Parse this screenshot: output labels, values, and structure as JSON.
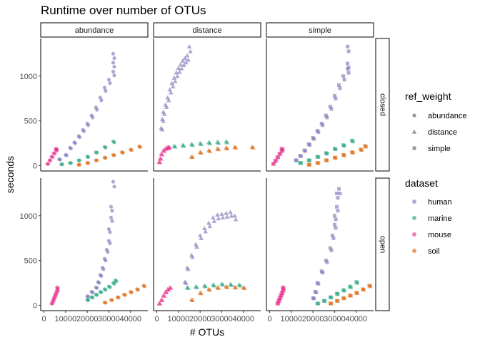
{
  "chart_data": {
    "type": "scatter",
    "title": "Runtime over number of OTUs",
    "xlabel": "# OTUs",
    "ylabel": "seconds",
    "x_ticks": [
      0,
      10000,
      20000,
      30000,
      40000
    ],
    "y_ticks": [
      0,
      500,
      1000
    ],
    "xlim": [
      -1500,
      48000
    ],
    "ylim": [
      -60,
      1420
    ],
    "grid": false,
    "legend_placement": "right",
    "facet_columns": [
      "abundance",
      "distance",
      "simple"
    ],
    "facet_rows": [
      "closed",
      "open"
    ],
    "legend_shape": {
      "title": "ref_weight",
      "items": [
        {
          "label": "abundance",
          "shape": "circle"
        },
        {
          "label": "distance",
          "shape": "triangle"
        },
        {
          "label": "simple",
          "shape": "square"
        }
      ]
    },
    "legend_color": {
      "title": "dataset",
      "items": [
        {
          "label": "human",
          "color": "#7570B3"
        },
        {
          "label": "marine",
          "color": "#1B9E77"
        },
        {
          "label": "mouse",
          "color": "#E7298A"
        },
        {
          "label": "soil",
          "color": "#D95F02"
        }
      ]
    },
    "panels": [
      {
        "row": "closed",
        "col": "abundance",
        "shape": "circle",
        "series": [
          {
            "dataset": "human",
            "x": [
              7000,
              10000,
              12000,
              14000,
              16000,
              18000,
              20000,
              22000,
              24000,
              26000,
              28000,
              30000,
              32000,
              32000,
              32000
            ],
            "y": [
              70,
              120,
              200,
              260,
              330,
              400,
              470,
              560,
              650,
              760,
              870,
              960,
              1050,
              1150,
              1250
            ]
          },
          {
            "dataset": "marine",
            "x": [
              8000,
              12000,
              16000,
              20000,
              24000,
              28000,
              32000
            ],
            "y": [
              15,
              30,
              60,
              100,
              150,
              210,
              270
            ]
          },
          {
            "dataset": "mouse",
            "x": [
              1500,
              2500,
              3500,
              4500,
              5500,
              5500
            ],
            "y": [
              20,
              60,
              100,
              140,
              175,
              190
            ]
          },
          {
            "dataset": "soil",
            "x": [
              16000,
              20000,
              24000,
              28000,
              32000,
              36000,
              40000,
              44000
            ],
            "y": [
              10,
              30,
              60,
              90,
              120,
              150,
              180,
              215
            ]
          }
        ]
      },
      {
        "row": "closed",
        "col": "distance",
        "shape": "triangle",
        "series": [
          {
            "dataset": "human",
            "x": [
              2000,
              2500,
              3000,
              4000,
              5000,
              6000,
              7000,
              8000,
              9000,
              10000,
              11000,
              12000,
              13000,
              14000,
              15000
            ],
            "y": [
              420,
              520,
              600,
              680,
              760,
              850,
              920,
              980,
              1040,
              1090,
              1130,
              1170,
              1200,
              1230,
              1330
            ]
          },
          {
            "dataset": "marine",
            "x": [
              8000,
              12000,
              16000,
              20000,
              24000,
              28000,
              32000
            ],
            "y": [
              220,
              230,
              240,
              250,
              260,
              265,
              270
            ]
          },
          {
            "dataset": "mouse",
            "x": [
              1000,
              1500,
              2000,
              3000,
              4000,
              5000,
              5500
            ],
            "y": [
              40,
              80,
              130,
              170,
              195,
              205,
              210
            ]
          },
          {
            "dataset": "soil",
            "x": [
              16000,
              20000,
              24000,
              28000,
              32000,
              36000,
              44000
            ],
            "y": [
              100,
              150,
              170,
              190,
              200,
              210,
              210
            ]
          }
        ]
      },
      {
        "row": "closed",
        "col": "simple",
        "shape": "square",
        "series": [
          {
            "dataset": "human",
            "x": [
              12000,
              14000,
              16000,
              18000,
              20000,
              22000,
              24000,
              26000,
              28000,
              30000,
              32000,
              34000,
              36000,
              36000,
              36000
            ],
            "y": [
              60,
              110,
              170,
              240,
              310,
              390,
              470,
              560,
              660,
              780,
              900,
              1000,
              1080,
              1140,
              1330
            ]
          },
          {
            "dataset": "marine",
            "x": [
              14000,
              18000,
              22000,
              26000,
              30000,
              34000,
              38000
            ],
            "y": [
              30,
              60,
              100,
              140,
              190,
              230,
              280
            ]
          },
          {
            "dataset": "mouse",
            "x": [
              1500,
              2500,
              3500,
              4500,
              5500,
              5500
            ],
            "y": [
              20,
              55,
              95,
              135,
              170,
              190
            ]
          },
          {
            "dataset": "soil",
            "x": [
              18000,
              22000,
              26000,
              30000,
              34000,
              38000,
              42000,
              44000
            ],
            "y": [
              10,
              30,
              60,
              90,
              120,
              150,
              180,
              220
            ]
          }
        ]
      },
      {
        "row": "open",
        "col": "abundance",
        "shape": "circle",
        "series": [
          {
            "dataset": "human",
            "x": [
              20000,
              22000,
              24000,
              25000,
              26000,
              27000,
              28000,
              29000,
              30000,
              30000,
              31000,
              31000,
              32000
            ],
            "y": [
              100,
              150,
              200,
              260,
              340,
              420,
              520,
              620,
              720,
              850,
              980,
              1100,
              1380
            ]
          },
          {
            "dataset": "marine",
            "x": [
              20000,
              22000,
              24000,
              26000,
              28000,
              30000,
              32000,
              33000
            ],
            "y": [
              60,
              90,
              120,
              150,
              180,
              210,
              250,
              280
            ]
          },
          {
            "dataset": "mouse",
            "x": [
              3500,
              4000,
              4500,
              5000,
              5500,
              6000,
              6000
            ],
            "y": [
              20,
              50,
              80,
              110,
              140,
              170,
              200
            ]
          },
          {
            "dataset": "soil",
            "x": [
              28000,
              31000,
              34000,
              37000,
              40000,
              43000,
              46000
            ],
            "y": [
              30,
              60,
              90,
              120,
              150,
              180,
              220
            ]
          }
        ]
      },
      {
        "row": "open",
        "col": "distance",
        "shape": "triangle",
        "series": [
          {
            "dataset": "human",
            "x": [
              13000,
              14000,
              16000,
              18000,
              20000,
              22000,
              24000,
              26000,
              28000,
              30000,
              32000,
              34000,
              36000
            ],
            "y": [
              260,
              420,
              560,
              680,
              780,
              860,
              920,
              980,
              1010,
              1020,
              1030,
              1040,
              1000
            ]
          },
          {
            "dataset": "marine",
            "x": [
              14000,
              18000,
              22000,
              26000,
              30000,
              34000,
              38000
            ],
            "y": [
              200,
              210,
              220,
              230,
              240,
              235,
              230
            ]
          },
          {
            "dataset": "mouse",
            "x": [
              1000,
              2000,
              3000,
              4000,
              5000,
              6000
            ],
            "y": [
              20,
              60,
              110,
              150,
              180,
              200
            ]
          },
          {
            "dataset": "soil",
            "x": [
              16000,
              20000,
              24000,
              28000,
              32000,
              36000,
              40000
            ],
            "y": [
              60,
              140,
              180,
              200,
              210,
              205,
              200
            ]
          }
        ]
      },
      {
        "row": "open",
        "col": "simple",
        "shape": "square",
        "series": [
          {
            "dataset": "human",
            "x": [
              20000,
              21000,
              22000,
              24000,
              26000,
              28000,
              29000,
              30000,
              30000,
              31000,
              31000,
              32000
            ],
            "y": [
              80,
              150,
              250,
              380,
              500,
              640,
              780,
              900,
              1000,
              1100,
              1250,
              1300
            ]
          },
          {
            "dataset": "marine",
            "x": [
              22000,
              25000,
              28000,
              31000,
              34000,
              37000,
              40000
            ],
            "y": [
              20,
              50,
              90,
              130,
              170,
              210,
              260
            ]
          },
          {
            "dataset": "mouse",
            "x": [
              3500,
              4000,
              4500,
              5000,
              5500,
              6000,
              6000
            ],
            "y": [
              20,
              50,
              80,
              110,
              140,
              170,
              200
            ]
          },
          {
            "dataset": "soil",
            "x": [
              28000,
              31000,
              34000,
              37000,
              40000,
              43000,
              46000
            ],
            "y": [
              20,
              50,
              80,
              110,
              140,
              180,
              220
            ]
          }
        ]
      }
    ]
  }
}
